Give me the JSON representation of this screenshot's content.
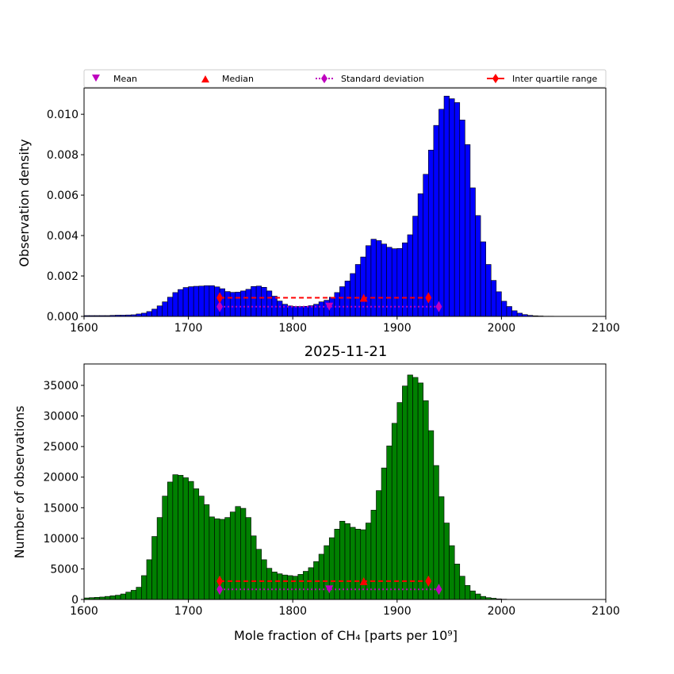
{
  "chart_data": [
    {
      "type": "bar",
      "title": "",
      "xlabel": "",
      "ylabel": "Observation density",
      "xlim": [
        1600,
        2100
      ],
      "ylim": [
        0,
        0.0113
      ],
      "x_ticks": [
        1600,
        1700,
        1800,
        1900,
        2000,
        2100
      ],
      "y_ticks": [
        "0.000",
        "0.002",
        "0.004",
        "0.006",
        "0.008",
        "0.010"
      ],
      "y_tick_values": [
        0,
        0.002,
        0.004,
        0.006,
        0.008,
        0.01
      ],
      "bar_color": "#0000ff",
      "bin_width": 5,
      "bin_start": 1600,
      "values": [
        4e-05,
        4e-05,
        4e-05,
        4e-05,
        4e-05,
        5e-05,
        6e-05,
        6e-05,
        7e-05,
        8e-05,
        0.00012,
        0.00016,
        0.00024,
        0.00036,
        0.00052,
        0.00072,
        0.00095,
        0.00118,
        0.00133,
        0.00143,
        0.00147,
        0.00149,
        0.0015,
        0.00152,
        0.00152,
        0.00146,
        0.00137,
        0.00123,
        0.00119,
        0.0012,
        0.00126,
        0.00134,
        0.00148,
        0.0015,
        0.00144,
        0.00126,
        0.001,
        0.00076,
        0.0006,
        0.00052,
        0.00049,
        0.00049,
        0.0005,
        0.00053,
        0.0006,
        0.00072,
        0.0008,
        0.00095,
        0.00118,
        0.00147,
        0.00175,
        0.00212,
        0.00257,
        0.00294,
        0.0035,
        0.00382,
        0.00375,
        0.00358,
        0.00342,
        0.00335,
        0.00336,
        0.00364,
        0.00404,
        0.00496,
        0.00607,
        0.00703,
        0.00823,
        0.00945,
        0.01025,
        0.0109,
        0.01077,
        0.01058,
        0.00972,
        0.0085,
        0.00636,
        0.00499,
        0.00369,
        0.00257,
        0.00178,
        0.00122,
        0.00075,
        0.00049,
        0.00028,
        0.00016,
        9e-05,
        5e-05,
        3e-05,
        2e-05,
        1e-05,
        1e-05,
        0.0,
        0.0,
        0.0,
        0.0,
        0.0,
        0.0,
        0.0,
        0.0,
        0.0,
        0.0
      ],
      "stats": {
        "mean": {
          "x": 1835,
          "y": 0.00048
        },
        "median": {
          "x": 1868,
          "y": 0.00092
        },
        "std_range": {
          "x": [
            1730,
            1940
          ],
          "y": 0.00048
        },
        "iqr_range": {
          "x": [
            1730,
            1930
          ],
          "y": 0.00092
        }
      }
    },
    {
      "type": "bar",
      "title": "2025-11-21",
      "xlabel": "Mole fraction of CH₄ [parts per 10⁹]",
      "ylabel": "Number of observations",
      "xlim": [
        1600,
        2100
      ],
      "ylim": [
        0,
        38500
      ],
      "x_ticks": [
        1600,
        1700,
        1800,
        1900,
        2000,
        2100
      ],
      "y_ticks": [
        "0",
        "5000",
        "10000",
        "15000",
        "20000",
        "25000",
        "30000",
        "35000"
      ],
      "y_tick_values": [
        0,
        5000,
        10000,
        15000,
        20000,
        25000,
        30000,
        35000
      ],
      "bar_color": "#008000",
      "bin_width": 5,
      "bin_start": 1600,
      "values": [
        250,
        300,
        350,
        400,
        500,
        600,
        700,
        900,
        1200,
        1500,
        2000,
        3900,
        6500,
        10300,
        13400,
        16900,
        19200,
        20400,
        20300,
        19900,
        19300,
        18100,
        16900,
        15500,
        13500,
        13200,
        13100,
        13400,
        14300,
        15200,
        14900,
        13400,
        10400,
        8200,
        6500,
        5100,
        4500,
        4200,
        4000,
        3900,
        3800,
        4100,
        4600,
        5200,
        6200,
        7400,
        8800,
        10100,
        11500,
        12800,
        12400,
        11800,
        11500,
        11400,
        12500,
        14600,
        17800,
        21500,
        25100,
        28800,
        32200,
        34900,
        36700,
        36300,
        35400,
        32500,
        27600,
        21900,
        16800,
        12500,
        8800,
        5800,
        3800,
        2300,
        1400,
        900,
        500,
        300,
        200,
        100,
        50,
        0,
        0,
        0,
        0,
        0,
        0,
        0,
        0,
        0,
        0,
        0,
        0,
        0,
        0,
        0,
        0,
        0,
        0,
        0
      ],
      "stats": {
        "mean": {
          "x": 1835,
          "y": 1650
        },
        "median": {
          "x": 1868,
          "y": 3000
        },
        "std_range": {
          "x": [
            1730,
            1940
          ],
          "y": 1650
        },
        "iqr_range": {
          "x": [
            1730,
            1930
          ],
          "y": 3000
        }
      }
    }
  ],
  "legend": {
    "placement": "top",
    "items": [
      {
        "label": "Mean",
        "marker": "triangle-down",
        "color": "#bf00bf"
      },
      {
        "label": "Median",
        "marker": "triangle-up",
        "color": "#ff0000"
      },
      {
        "label": "Standard deviation",
        "marker": "diamond-dotted",
        "color": "#bf00bf"
      },
      {
        "label": "Inter quartile range",
        "marker": "diamond-solid",
        "color": "#ff0000"
      }
    ]
  }
}
